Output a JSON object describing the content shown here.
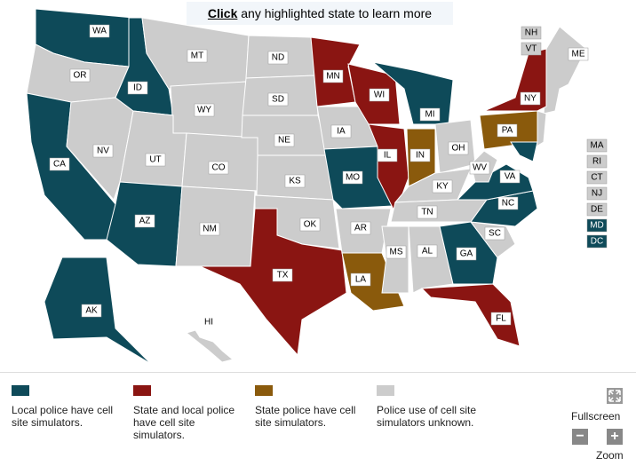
{
  "instruction": {
    "emphasis": "Click",
    "text": "any highlighted state to learn more"
  },
  "legend": [
    {
      "color": "#0e4a59",
      "label": "Local police have cell site simulators."
    },
    {
      "color": "#8a1512",
      "label": "State and local police have cell site simulators."
    },
    {
      "color": "#8a5a0c",
      "label": "State police have cell site simulators."
    },
    {
      "color": "#cccccc",
      "label": "Police use of cell site simulators unknown."
    }
  ],
  "states": [
    {
      "label": "WA",
      "color": "#0e4a59"
    },
    {
      "label": "OR",
      "color": "#cccccc"
    },
    {
      "label": "CA",
      "color": "#0e4a59"
    },
    {
      "label": "NV",
      "color": "#cccccc"
    },
    {
      "label": "ID",
      "color": "#0e4a59"
    },
    {
      "label": "MT",
      "color": "#cccccc"
    },
    {
      "label": "WY",
      "color": "#cccccc"
    },
    {
      "label": "UT",
      "color": "#cccccc"
    },
    {
      "label": "CO",
      "color": "#cccccc"
    },
    {
      "label": "AZ",
      "color": "#0e4a59"
    },
    {
      "label": "NM",
      "color": "#cccccc"
    },
    {
      "label": "ND",
      "color": "#cccccc"
    },
    {
      "label": "SD",
      "color": "#cccccc"
    },
    {
      "label": "NE",
      "color": "#cccccc"
    },
    {
      "label": "KS",
      "color": "#cccccc"
    },
    {
      "label": "OK",
      "color": "#cccccc"
    },
    {
      "label": "TX",
      "color": "#8a1512"
    },
    {
      "label": "MN",
      "color": "#8a1512"
    },
    {
      "label": "IA",
      "color": "#cccccc"
    },
    {
      "label": "MO",
      "color": "#0e4a59"
    },
    {
      "label": "AR",
      "color": "#cccccc"
    },
    {
      "label": "LA",
      "color": "#8a5a0c"
    },
    {
      "label": "WI",
      "color": "#8a1512"
    },
    {
      "label": "IL",
      "color": "#8a1512"
    },
    {
      "label": "MI",
      "color": "#0e4a59"
    },
    {
      "label": "IN",
      "color": "#8a5a0c"
    },
    {
      "label": "OH",
      "color": "#cccccc"
    },
    {
      "label": "KY",
      "color": "#cccccc"
    },
    {
      "label": "TN",
      "color": "#cccccc"
    },
    {
      "label": "MS",
      "color": "#cccccc"
    },
    {
      "label": "AL",
      "color": "#cccccc"
    },
    {
      "label": "GA",
      "color": "#0e4a59"
    },
    {
      "label": "FL",
      "color": "#8a1512"
    },
    {
      "label": "SC",
      "color": "#cccccc"
    },
    {
      "label": "NC",
      "color": "#0e4a59"
    },
    {
      "label": "VA",
      "color": "#0e4a59"
    },
    {
      "label": "WV",
      "color": "#cccccc"
    },
    {
      "label": "PA",
      "color": "#8a5a0c"
    },
    {
      "label": "NY",
      "color": "#8a1512"
    },
    {
      "label": "ME",
      "color": "#cccccc"
    },
    {
      "label": "AK",
      "color": "#0e4a59"
    },
    {
      "label": "HI",
      "color": "#cccccc"
    },
    {
      "label": "NH",
      "color": "#cccccc"
    },
    {
      "label": "VT",
      "color": "#cccccc"
    },
    {
      "label": "MA",
      "color": "#cccccc"
    },
    {
      "label": "RI",
      "color": "#cccccc"
    },
    {
      "label": "CT",
      "color": "#cccccc"
    },
    {
      "label": "NJ",
      "color": "#cccccc"
    },
    {
      "label": "DE",
      "color": "#cccccc"
    },
    {
      "label": "MD",
      "color": "#0e4a59"
    },
    {
      "label": "DC",
      "color": "#0e4a59"
    }
  ],
  "controls": {
    "fullscreen": "Fullscreen",
    "zoom_out": "−",
    "zoom_in": "+",
    "zoom": "Zoom"
  }
}
